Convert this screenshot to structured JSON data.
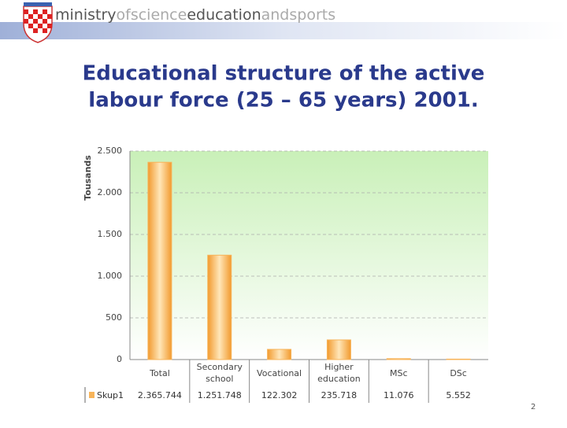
{
  "header": {
    "brand": [
      "ministry",
      "ofscience",
      "education",
      "andsports"
    ]
  },
  "chart_data": {
    "type": "bar",
    "title": [
      "Educational structure of the active",
      "labour force (25 – 65 years) 2001."
    ],
    "y_label": "Tousands",
    "categories": [
      "Total",
      "Secondary school",
      "Vocational",
      "Higher education",
      "MSc",
      "DSc"
    ],
    "series": [
      {
        "name": "Skup1",
        "color": "#f7b45a",
        "values": [
          2365.744,
          1251.748,
          122.302,
          235.718,
          11.076,
          5.552
        ],
        "value_labels": [
          "2.365.744",
          "1.251.748",
          "122.302",
          "235.718",
          "11.076",
          "5.552"
        ]
      }
    ],
    "ylim": [
      0,
      2500
    ],
    "yticks": [
      0,
      500,
      {
        "value": 1000,
        "label": "1.000"
      },
      {
        "value": 1500,
        "label": "1.500"
      },
      {
        "value": 2000,
        "label": "2.000"
      },
      {
        "value": 2500,
        "label": "2.500"
      }
    ],
    "grid": true
  },
  "page_number": "2"
}
